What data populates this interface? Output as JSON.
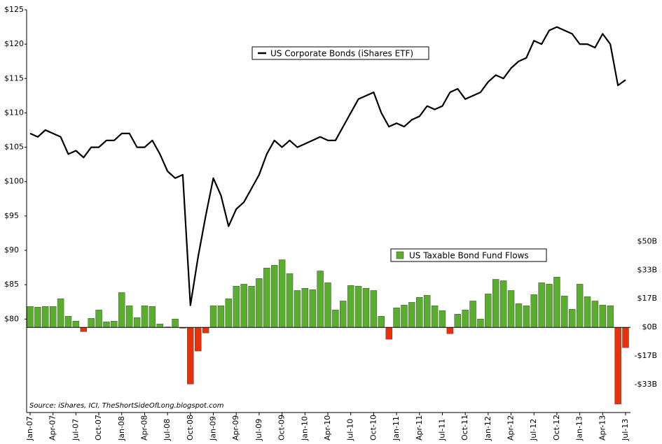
{
  "chart_data": {
    "type": "bar_line",
    "annotation": "Source: iShares, ICI, TheShortSideOfLong.blogspot.com",
    "categories": [
      "Jan-07",
      null,
      null,
      "Apr-07",
      null,
      null,
      "Jul-07",
      null,
      null,
      "Oct-07",
      null,
      null,
      "Jan-08",
      null,
      null,
      "Apr-08",
      null,
      null,
      "Jul-08",
      null,
      null,
      "Oct-08",
      null,
      null,
      "Jan-09",
      null,
      null,
      "Apr-09",
      null,
      null,
      "Jul-09",
      null,
      null,
      "Oct-09",
      null,
      null,
      "Jan-10",
      null,
      null,
      "Apr-10",
      null,
      null,
      "Jul-10",
      null,
      null,
      "Oct-10",
      null,
      null,
      "Jan-11",
      null,
      null,
      "Apr-11",
      null,
      null,
      "Jul-11",
      null,
      null,
      "Oct-11",
      null,
      null,
      "Jan-12",
      null,
      null,
      "Apr-12",
      null,
      null,
      "Jul-12",
      null,
      null,
      "Oct-12",
      null,
      null,
      "Jan-13",
      null,
      null,
      "Apr-13",
      null,
      null,
      "Jul-13"
    ],
    "series": [
      {
        "name": "US Corporate Bonds (iShares ETF)",
        "type": "line",
        "axis": "y",
        "color": "#000000",
        "values": [
          107,
          106.5,
          107.5,
          107,
          106.5,
          104,
          104.5,
          103.5,
          105,
          105,
          106,
          106,
          107,
          107,
          105,
          105,
          106,
          104,
          101.5,
          100.5,
          101,
          82,
          89,
          95,
          100.5,
          98,
          93.5,
          96,
          97,
          99,
          101,
          104,
          106,
          105,
          106,
          105,
          105.5,
          106,
          106.5,
          106,
          106,
          108,
          110,
          112,
          112.5,
          113,
          110,
          108,
          108.5,
          108,
          109,
          109.5,
          111,
          110.5,
          111,
          113,
          113.5,
          112,
          112.5,
          113,
          114.5,
          115.5,
          115,
          116.5,
          117.5,
          118,
          120.5,
          120,
          122,
          122.5,
          122,
          121.5,
          120,
          120,
          119.5,
          121.5,
          120,
          114,
          114.8
        ]
      },
      {
        "name": "US Taxable Bond Fund Flows",
        "type": "bar",
        "axis": "y2",
        "color": "#5aae2e",
        "negative_color": "#e8310b",
        "values": [
          12.2,
          11.8,
          12.2,
          12.2,
          16.7,
          6.5,
          3.7,
          -2.5,
          5.3,
          10.2,
          3.3,
          3.7,
          20.3,
          12.6,
          5.7,
          12.6,
          12.2,
          2,
          0.3,
          4.9,
          -0.5,
          -33,
          -13.8,
          -3.3,
          12.6,
          12.6,
          16.7,
          24,
          25.2,
          24,
          28.5,
          34.6,
          36.2,
          39.4,
          31.3,
          21.5,
          22.8,
          22,
          32.9,
          26,
          10.2,
          15.4,
          24.4,
          24,
          22.8,
          21.5,
          6.5,
          -6.9,
          11.4,
          13,
          14.6,
          17.5,
          18.7,
          12.6,
          9.8,
          -3.7,
          7.7,
          10.2,
          15.4,
          4.9,
          19.5,
          28,
          27.2,
          21.5,
          13.8,
          12.6,
          19.1,
          26,
          25.2,
          29.3,
          18.3,
          10.6,
          25.2,
          17.9,
          15.4,
          13,
          12.6,
          -44.7,
          -11.8
        ]
      }
    ],
    "ylim": [
      66.4,
      125
    ],
    "yticks": [
      {
        "value": 80,
        "label": "$80"
      },
      {
        "value": 85,
        "label": "$85"
      },
      {
        "value": 90,
        "label": "$90"
      },
      {
        "value": 95,
        "label": "$95"
      },
      {
        "value": 100,
        "label": "$100"
      },
      {
        "value": 105,
        "label": "$105"
      },
      {
        "value": 110,
        "label": "$110"
      },
      {
        "value": 115,
        "label": "$115"
      },
      {
        "value": 120,
        "label": "$120"
      },
      {
        "value": 125,
        "label": "$125"
      }
    ],
    "y2lim": [
      -49.6,
      185
    ],
    "y2ticks": [
      {
        "value": 50,
        "label": "$50B"
      },
      {
        "value": 33.3,
        "label": "$33B"
      },
      {
        "value": 16.7,
        "label": "$17B"
      },
      {
        "value": 0,
        "label": "$0B"
      },
      {
        "value": -16.7,
        "label": "-$17B"
      },
      {
        "value": -33.3,
        "label": "-$33B"
      }
    ]
  }
}
